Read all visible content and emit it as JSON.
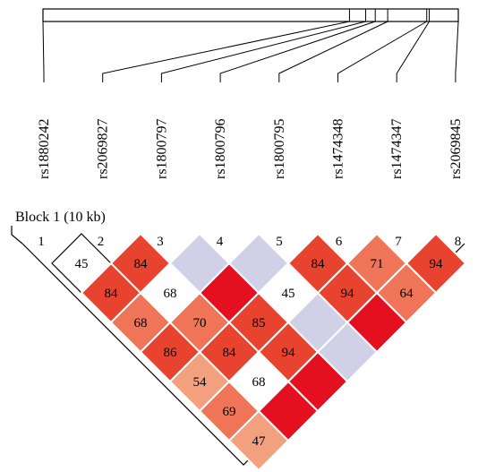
{
  "block_label": "Block 1 (10 kb)",
  "snps": [
    {
      "index": "1",
      "name": "rs1880242"
    },
    {
      "index": "2",
      "name": "rs2069827"
    },
    {
      "index": "3",
      "name": "rs1800797"
    },
    {
      "index": "4",
      "name": "rs1800796"
    },
    {
      "index": "5",
      "name": "rs1800795"
    },
    {
      "index": "6",
      "name": "rs1474348"
    },
    {
      "index": "7",
      "name": "rs1474347"
    },
    {
      "index": "8",
      "name": "rs2069845"
    }
  ],
  "genomic_positions": [
    0.0,
    0.738,
    0.777,
    0.8,
    0.83,
    0.924,
    0.93,
    1.0
  ],
  "colors": {
    "line": "#000000",
    "cell_border": "#ffffff",
    "white": "#ffffff",
    "grey": "#d0d0e6",
    "light": "#f2a07e",
    "medium": "#f07457",
    "strong": "#e8432e",
    "full": "#e4101f"
  },
  "ld_cells": [
    {
      "pair": [
        1,
        2
      ],
      "value": "45",
      "fill": "white",
      "outlined": true
    },
    {
      "pair": [
        2,
        3
      ],
      "value": "84",
      "fill": "strong"
    },
    {
      "pair": [
        3,
        4
      ],
      "value": "",
      "fill": "grey"
    },
    {
      "pair": [
        4,
        5
      ],
      "value": "",
      "fill": "grey"
    },
    {
      "pair": [
        5,
        6
      ],
      "value": "84",
      "fill": "strong"
    },
    {
      "pair": [
        6,
        7
      ],
      "value": "71",
      "fill": "medium"
    },
    {
      "pair": [
        7,
        8
      ],
      "value": "94",
      "fill": "strong"
    },
    {
      "pair": [
        1,
        3
      ],
      "value": "84",
      "fill": "strong"
    },
    {
      "pair": [
        2,
        4
      ],
      "value": "68",
      "fill": "white"
    },
    {
      "pair": [
        3,
        5
      ],
      "value": "",
      "fill": "full"
    },
    {
      "pair": [
        4,
        6
      ],
      "value": "45",
      "fill": "white"
    },
    {
      "pair": [
        5,
        7
      ],
      "value": "94",
      "fill": "strong"
    },
    {
      "pair": [
        6,
        8
      ],
      "value": "64",
      "fill": "medium"
    },
    {
      "pair": [
        1,
        4
      ],
      "value": "68",
      "fill": "medium"
    },
    {
      "pair": [
        2,
        5
      ],
      "value": "70",
      "fill": "medium"
    },
    {
      "pair": [
        3,
        6
      ],
      "value": "85",
      "fill": "strong"
    },
    {
      "pair": [
        4,
        7
      ],
      "value": "",
      "fill": "grey"
    },
    {
      "pair": [
        5,
        8
      ],
      "value": "",
      "fill": "full"
    },
    {
      "pair": [
        1,
        5
      ],
      "value": "86",
      "fill": "strong"
    },
    {
      "pair": [
        2,
        6
      ],
      "value": "84",
      "fill": "strong"
    },
    {
      "pair": [
        3,
        7
      ],
      "value": "94",
      "fill": "strong"
    },
    {
      "pair": [
        4,
        8
      ],
      "value": "",
      "fill": "grey"
    },
    {
      "pair": [
        1,
        6
      ],
      "value": "54",
      "fill": "light"
    },
    {
      "pair": [
        2,
        7
      ],
      "value": "68",
      "fill": "white"
    },
    {
      "pair": [
        3,
        8
      ],
      "value": "",
      "fill": "full"
    },
    {
      "pair": [
        1,
        7
      ],
      "value": "69",
      "fill": "medium"
    },
    {
      "pair": [
        2,
        8
      ],
      "value": "",
      "fill": "full"
    },
    {
      "pair": [
        1,
        8
      ],
      "value": "47",
      "fill": "light"
    }
  ]
}
